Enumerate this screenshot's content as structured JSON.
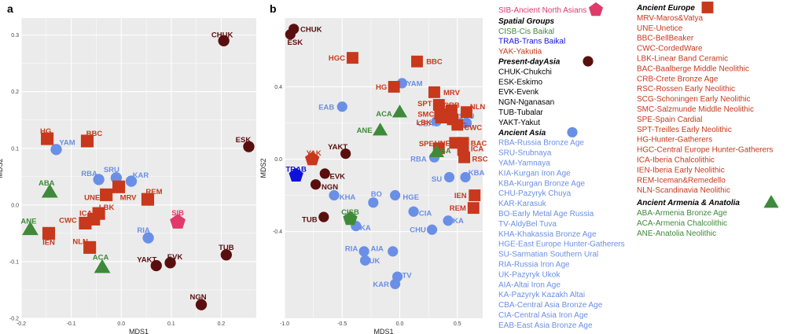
{
  "colors": {
    "present_asia": "#5a0f0f",
    "ancient_asia": "#6a8fe6",
    "ancient_europe": "#c8381c",
    "armenia_anatolia": "#3f8a3a",
    "sib": "#e13a6a",
    "trab": "#1010dd",
    "cisb": "#3f8a3a",
    "yak": "#c8381c",
    "plot_bg": "#ebebeb",
    "grid": "#ffffff"
  },
  "chart_data": [
    {
      "type": "scatter",
      "panel_label": "a",
      "xlabel": "MDS1",
      "ylabel": "MDS2",
      "xlim": [
        -0.2,
        0.27
      ],
      "ylim": [
        -0.2,
        0.33
      ],
      "xticks": [
        -0.2,
        -0.1,
        0.0,
        0.1,
        0.2
      ],
      "xtick_labels": [
        "-0.2",
        "-0.1",
        "0.0",
        "0.1",
        "0.2"
      ],
      "yticks": [
        -0.2,
        -0.1,
        0.0,
        0.1,
        0.2,
        0.3
      ],
      "ytick_labels": [
        "-0.2",
        "-0.1",
        "0.0",
        "0.1",
        "0.2",
        "0.3"
      ],
      "grid": true,
      "points": [
        {
          "label": "CHUK",
          "x": 0.205,
          "y": 0.29,
          "group": "present_asia",
          "shape": "circle",
          "dx": -2,
          "dy": -8
        },
        {
          "label": "ESK",
          "x": 0.255,
          "y": 0.103,
          "group": "present_asia",
          "shape": "circle",
          "dx": -7,
          "dy": -9
        },
        {
          "label": "TUB",
          "x": 0.21,
          "y": -0.088,
          "group": "present_asia",
          "shape": "circle",
          "dx": 0,
          "dy": -10
        },
        {
          "label": "NGN",
          "x": 0.16,
          "y": -0.176,
          "group": "present_asia",
          "shape": "circle",
          "dx": -4,
          "dy": -10
        },
        {
          "label": "YAKT",
          "x": 0.07,
          "y": -0.107,
          "group": "present_asia",
          "shape": "circle",
          "dx": -12,
          "dy": -8
        },
        {
          "label": "EVK",
          "x": 0.098,
          "y": -0.102,
          "group": "present_asia",
          "shape": "circle",
          "dx": 6,
          "dy": -8
        },
        {
          "label": "YAM",
          "x": -0.13,
          "y": 0.098,
          "group": "ancient_asia",
          "shape": "circle",
          "dx": 14,
          "dy": -9
        },
        {
          "label": "RBA",
          "x": -0.045,
          "y": 0.045,
          "group": "ancient_asia",
          "shape": "circle",
          "dx": -12,
          "dy": -8
        },
        {
          "label": "SRU",
          "x": -0.01,
          "y": 0.048,
          "group": "ancient_asia",
          "shape": "circle",
          "dx": -6,
          "dy": -11
        },
        {
          "label": "KAR",
          "x": 0.02,
          "y": 0.042,
          "group": "ancient_asia",
          "shape": "circle",
          "dx": 12,
          "dy": -8
        },
        {
          "label": "RIA",
          "x": 0.054,
          "y": -0.058,
          "group": "ancient_asia",
          "shape": "circle",
          "dx": -6,
          "dy": -10
        },
        {
          "label": "HG",
          "x": -0.148,
          "y": 0.117,
          "group": "ancient_europe",
          "shape": "square",
          "dx": -2,
          "dy": -10
        },
        {
          "label": "BBC",
          "x": -0.068,
          "y": 0.113,
          "group": "ancient_europe",
          "shape": "square",
          "dx": 9,
          "dy": -10
        },
        {
          "label": "UNE",
          "x": -0.03,
          "y": 0.018,
          "group": "ancient_europe",
          "shape": "square",
          "dx": -18,
          "dy": 3
        },
        {
          "label": "MRV",
          "x": -0.005,
          "y": 0.032,
          "group": "ancient_europe",
          "shape": "square",
          "dx": 12,
          "dy": 13
        },
        {
          "label": "LBK",
          "x": -0.045,
          "y": -0.015,
          "group": "ancient_europe",
          "shape": "square",
          "dx": 10,
          "dy": -8
        },
        {
          "label": "ICA",
          "x": -0.055,
          "y": -0.025,
          "group": "ancient_europe",
          "shape": "square",
          "dx": -10,
          "dy": -8
        },
        {
          "label": "CWC",
          "x": -0.072,
          "y": -0.032,
          "group": "ancient_europe",
          "shape": "square",
          "dx": -22,
          "dy": -4
        },
        {
          "label": "NLN",
          "x": -0.063,
          "y": -0.075,
          "group": "ancient_europe",
          "shape": "square",
          "dx": -12,
          "dy": -8
        },
        {
          "label": "IEN",
          "x": -0.145,
          "y": -0.05,
          "group": "ancient_europe",
          "shape": "square",
          "dx": 0,
          "dy": 11
        },
        {
          "label": "REM",
          "x": 0.053,
          "y": 0.01,
          "group": "ancient_europe",
          "shape": "square",
          "dx": 8,
          "dy": -10
        },
        {
          "label": "ABA",
          "x": -0.143,
          "y": 0.023,
          "group": "armenia_anatolia",
          "shape": "triangle",
          "dx": -4,
          "dy": -12
        },
        {
          "label": "ANE",
          "x": -0.182,
          "y": -0.043,
          "group": "armenia_anatolia",
          "shape": "triangle",
          "dx": -2,
          "dy": -11
        },
        {
          "label": "ACA",
          "x": -0.038,
          "y": -0.11,
          "group": "armenia_anatolia",
          "shape": "triangle",
          "dx": -2,
          "dy": -13
        },
        {
          "label": "SIB",
          "x": 0.113,
          "y": -0.03,
          "group": "sib",
          "shape": "pentagon",
          "dx": 0,
          "dy": -12
        }
      ]
    },
    {
      "type": "scatter",
      "panel_label": "b",
      "xlabel": "MDS1",
      "ylabel": "MDS2",
      "xlim": [
        -1.0,
        0.72
      ],
      "ylim": [
        -0.88,
        0.78
      ],
      "xticks": [
        -1.0,
        -0.5,
        0.0,
        0.5
      ],
      "xtick_labels": [
        "-1.0",
        "-0.5",
        "0.0",
        "0.5"
      ],
      "yticks": [
        -0.4,
        0.0,
        0.4
      ],
      "ytick_labels": [
        "-0.4",
        "0.0",
        "0.4"
      ],
      "grid": true,
      "points": [
        {
          "label": "CHUK",
          "x": -0.92,
          "y": 0.72,
          "group": "present_asia",
          "shape": "circle",
          "dx": 22,
          "dy": 0
        },
        {
          "label": "ESK",
          "x": -0.95,
          "y": 0.69,
          "group": "present_asia",
          "shape": "circle",
          "dx": 6,
          "dy": 10
        },
        {
          "label": "YAKT",
          "x": -0.47,
          "y": 0.03,
          "group": "present_asia",
          "shape": "circle",
          "dx": -10,
          "dy": -9
        },
        {
          "label": "EVK",
          "x": -0.65,
          "y": -0.08,
          "group": "present_asia",
          "shape": "circle",
          "dx": 16,
          "dy": 3
        },
        {
          "label": "NGN",
          "x": -0.73,
          "y": -0.14,
          "group": "present_asia",
          "shape": "circle",
          "dx": 18,
          "dy": 3
        },
        {
          "label": "TUB",
          "x": -0.66,
          "y": -0.32,
          "group": "present_asia",
          "shape": "circle",
          "dx": -18,
          "dy": 3
        },
        {
          "label": "YAM",
          "x": 0.02,
          "y": 0.42,
          "group": "ancient_asia",
          "shape": "circle",
          "dx": 16,
          "dy": 0
        },
        {
          "label": "EAB",
          "x": -0.5,
          "y": 0.29,
          "group": "ancient_asia",
          "shape": "circle",
          "dx": -20,
          "dy": 0
        },
        {
          "label": "CBA",
          "x": 0.32,
          "y": 0.21,
          "group": "ancient_asia",
          "shape": "circle",
          "dx": -14,
          "dy": 3
        },
        {
          "label": "SRU",
          "x": 0.58,
          "y": 0.2,
          "group": "ancient_asia",
          "shape": "circle",
          "dx": 0,
          "dy": -9
        },
        {
          "label": "RBA",
          "x": 0.3,
          "y": 0.01,
          "group": "ancient_asia",
          "shape": "circle",
          "dx": -20,
          "dy": 2
        },
        {
          "label": "SU",
          "x": 0.43,
          "y": -0.1,
          "group": "ancient_asia",
          "shape": "circle",
          "dx": -16,
          "dy": 2
        },
        {
          "label": "KBA",
          "x": 0.57,
          "y": -0.1,
          "group": "ancient_asia",
          "shape": "circle",
          "dx": 14,
          "dy": -6
        },
        {
          "label": "KHA",
          "x": -0.57,
          "y": -0.2,
          "group": "ancient_asia",
          "shape": "circle",
          "dx": 17,
          "dy": 2
        },
        {
          "label": "BO",
          "x": -0.23,
          "y": -0.24,
          "group": "ancient_asia",
          "shape": "circle",
          "dx": 4,
          "dy": -11
        },
        {
          "label": "HGE",
          "x": -0.04,
          "y": -0.2,
          "group": "ancient_asia",
          "shape": "circle",
          "dx": 20,
          "dy": 2
        },
        {
          "label": "CIA",
          "x": 0.12,
          "y": -0.29,
          "group": "ancient_asia",
          "shape": "circle",
          "dx": 15,
          "dy": 2
        },
        {
          "label": "KA",
          "x": -0.38,
          "y": -0.37,
          "group": "ancient_asia",
          "shape": "circle",
          "dx": 12,
          "dy": 2
        },
        {
          "label": "KA",
          "x": 0.42,
          "y": -0.34,
          "group": "ancient_asia",
          "shape": "circle",
          "dx": 13,
          "dy": 0
        },
        {
          "label": "CHU",
          "x": 0.28,
          "y": -0.39,
          "group": "ancient_asia",
          "shape": "circle",
          "dx": -18,
          "dy": 0
        },
        {
          "label": "RIA",
          "x": -0.31,
          "y": -0.51,
          "group": "ancient_asia",
          "shape": "circle",
          "dx": -16,
          "dy": -4
        },
        {
          "label": "UK",
          "x": -0.3,
          "y": -0.56,
          "group": "ancient_asia",
          "shape": "circle",
          "dx": 12,
          "dy": 0
        },
        {
          "label": "AIA",
          "x": -0.06,
          "y": -0.51,
          "group": "ancient_asia",
          "shape": "circle",
          "dx": -20,
          "dy": -4
        },
        {
          "label": "TV",
          "x": -0.02,
          "y": -0.65,
          "group": "ancient_asia",
          "shape": "circle",
          "dx": 12,
          "dy": -2
        },
        {
          "label": "KAR",
          "x": -0.04,
          "y": -0.69,
          "group": "ancient_asia",
          "shape": "circle",
          "dx": -18,
          "dy": 0
        },
        {
          "label": "HGC",
          "x": -0.41,
          "y": 0.56,
          "group": "ancient_europe",
          "shape": "square",
          "dx": -20,
          "dy": 0
        },
        {
          "label": "BBC",
          "x": 0.15,
          "y": 0.54,
          "group": "ancient_europe",
          "shape": "square",
          "dx": 22,
          "dy": 0
        },
        {
          "label": "HG",
          "x": -0.05,
          "y": 0.4,
          "group": "ancient_europe",
          "shape": "square",
          "dx": -16,
          "dy": 0
        },
        {
          "label": "MRV",
          "x": 0.3,
          "y": 0.37,
          "group": "ancient_europe",
          "shape": "square",
          "dx": 22,
          "dy": 0
        },
        {
          "label": "SPT",
          "x": 0.34,
          "y": 0.3,
          "group": "ancient_europe",
          "shape": "square",
          "dx": -18,
          "dy": -2
        },
        {
          "label": "SMC",
          "x": 0.35,
          "y": 0.25,
          "group": "ancient_europe",
          "shape": "square",
          "dx": -18,
          "dy": 0
        },
        {
          "label": "LBK",
          "x": 0.36,
          "y": 0.23,
          "group": "ancient_europe",
          "shape": "square",
          "dx": -22,
          "dy": 6
        },
        {
          "label": "CRB",
          "x": 0.45,
          "y": 0.27,
          "group": "ancient_europe",
          "shape": "square",
          "dx": 0,
          "dy": -7
        },
        {
          "label": "NLN",
          "x": 0.58,
          "y": 0.26,
          "group": "ancient_europe",
          "shape": "square",
          "dx": 14,
          "dy": -7
        },
        {
          "label": "SCG",
          "x": 0.46,
          "y": 0.22,
          "group": "ancient_europe",
          "shape": "square",
          "dx": 8,
          "dy": 7
        },
        {
          "label": "CWC",
          "x": 0.5,
          "y": 0.19,
          "group": "ancient_europe",
          "shape": "square",
          "dx": 20,
          "dy": 3
        },
        {
          "label": "UNE",
          "x": 0.48,
          "y": 0.09,
          "group": "ancient_europe",
          "shape": "square",
          "dx": -16,
          "dy": 0
        },
        {
          "label": "BAC",
          "x": 0.55,
          "y": 0.09,
          "group": "ancient_europe",
          "shape": "square",
          "dx": 20,
          "dy": 0
        },
        {
          "label": "ICA",
          "x": 0.55,
          "y": 0.05,
          "group": "ancient_europe",
          "shape": "square",
          "dx": 18,
          "dy": -2
        },
        {
          "label": "SPE",
          "x": 0.34,
          "y": 0.06,
          "group": "ancient_europe",
          "shape": "square",
          "dx": -16,
          "dy": -6
        },
        {
          "label": "RSC",
          "x": 0.56,
          "y": 0.01,
          "group": "ancient_europe",
          "shape": "square",
          "dx": 20,
          "dy": 2
        },
        {
          "label": "IEN",
          "x": 0.65,
          "y": -0.2,
          "group": "ancient_europe",
          "shape": "square",
          "dx": -18,
          "dy": 0
        },
        {
          "label": "REM",
          "x": 0.64,
          "y": -0.27,
          "group": "ancient_europe",
          "shape": "square",
          "dx": -20,
          "dy": 0
        },
        {
          "label": "ACA",
          "x": 0.0,
          "y": 0.26,
          "group": "armenia_anatolia",
          "shape": "triangle",
          "dx": -20,
          "dy": 2
        },
        {
          "label": "ANE",
          "x": -0.17,
          "y": 0.16,
          "group": "armenia_anatolia",
          "shape": "triangle",
          "dx": -20,
          "dy": 0
        },
        {
          "label": "ABA",
          "x": 0.32,
          "y": 0.04,
          "group": "armenia_anatolia",
          "shape": "triangle",
          "dx": 8,
          "dy": -2
        },
        {
          "label": "YAK",
          "x": -0.76,
          "y": 0.0,
          "group": "yak",
          "shape": "pentagon",
          "dx": 2,
          "dy": -8
        },
        {
          "label": "TRAB",
          "x": -0.9,
          "y": -0.09,
          "group": "trab",
          "shape": "pentagon",
          "dx": 0,
          "dy": -8
        },
        {
          "label": "CISB",
          "x": -0.43,
          "y": -0.33,
          "group": "cisb",
          "shape": "pentagon",
          "dx": 0,
          "dy": -9
        }
      ]
    }
  ],
  "legend": {
    "col1": {
      "sib_entry": "SIB-Ancient North Asians",
      "spatial_header": "Spatial Groups",
      "spatial_items": [
        {
          "text": "CISB-Cis Baikal",
          "group": "cisb"
        },
        {
          "text": "TRAB-Trans Baikal",
          "group": "trab"
        },
        {
          "text": "YAK-Yakutia",
          "group": "yak"
        }
      ],
      "present_header": "Present-dayAsia",
      "present_items": [
        "CHUK-Chukchi",
        "ESK-Eskimo",
        "EVK-Evenk",
        "NGN-Nganasan",
        "TUB-Tubalar",
        "YAKT-Yakut"
      ],
      "ancient_asia_header": "Ancient Asia",
      "ancient_asia_items": [
        "RBA-Russia Bronze Age",
        "SRU-Srubnaya",
        "YAM-Yamnaya",
        "KIA-Kurgan Iron Age",
        "KBA-Kurgan Bronze Age",
        "CHU-Pazyryk Chuya",
        "KAR-Karasuk",
        "BO-Early Metal Age Russia",
        "TV-AldyBel Tuva",
        "KHA-Khakassia Bronze Age",
        "HGE-East Europe Hunter-Gatherers",
        "SU-Sarmatian Southern Ural",
        "RIA-Russia Iron Age",
        "UK-Pazyryk Ukok",
        "AIA-Altai Iron Age",
        "KA-Pazyryk Kazakh Altai",
        "CBA-Central Asia Bronze Age",
        "CIA-Central Asia Iron Age",
        "EAB-East Asia Bronze Age"
      ]
    },
    "col2": {
      "europe_header": "Ancient Europe",
      "europe_items": [
        "MRV-Maros&Vatya",
        "UNE-Unetice",
        "BBC-BellBeaker",
        "CWC-CordedWare",
        "LBK-Linear Band Ceramic",
        "BAC-Baalberge Middle Neolithic",
        "CRB-Crete Bronze Age",
        "RSC-Rossen Early Neolithic",
        "SCG-Schoningen Early Neolithic",
        "SMC-Salzmunde Middle Neolithic",
        "SPE-Spain Cardial",
        "SPT-Treilles Early Neolithic",
        "HG-Hunter-Gatherers",
        "HGC-Central Europe Hunter-Gatherers",
        "ICA-Iberia Chalcolithic",
        "IEN-Iberia Early Neolithic",
        "REM-Iceman&Remedello",
        "NLN-Scandinavia Neolithic"
      ],
      "armenia_header": "Ancient Armenia & Anatolia",
      "armenia_items": [
        "ABA-Armenia Bronze Age",
        "ACA-Armenia Chalcolithic",
        "ANE-Anatolia Neolithic"
      ]
    }
  }
}
